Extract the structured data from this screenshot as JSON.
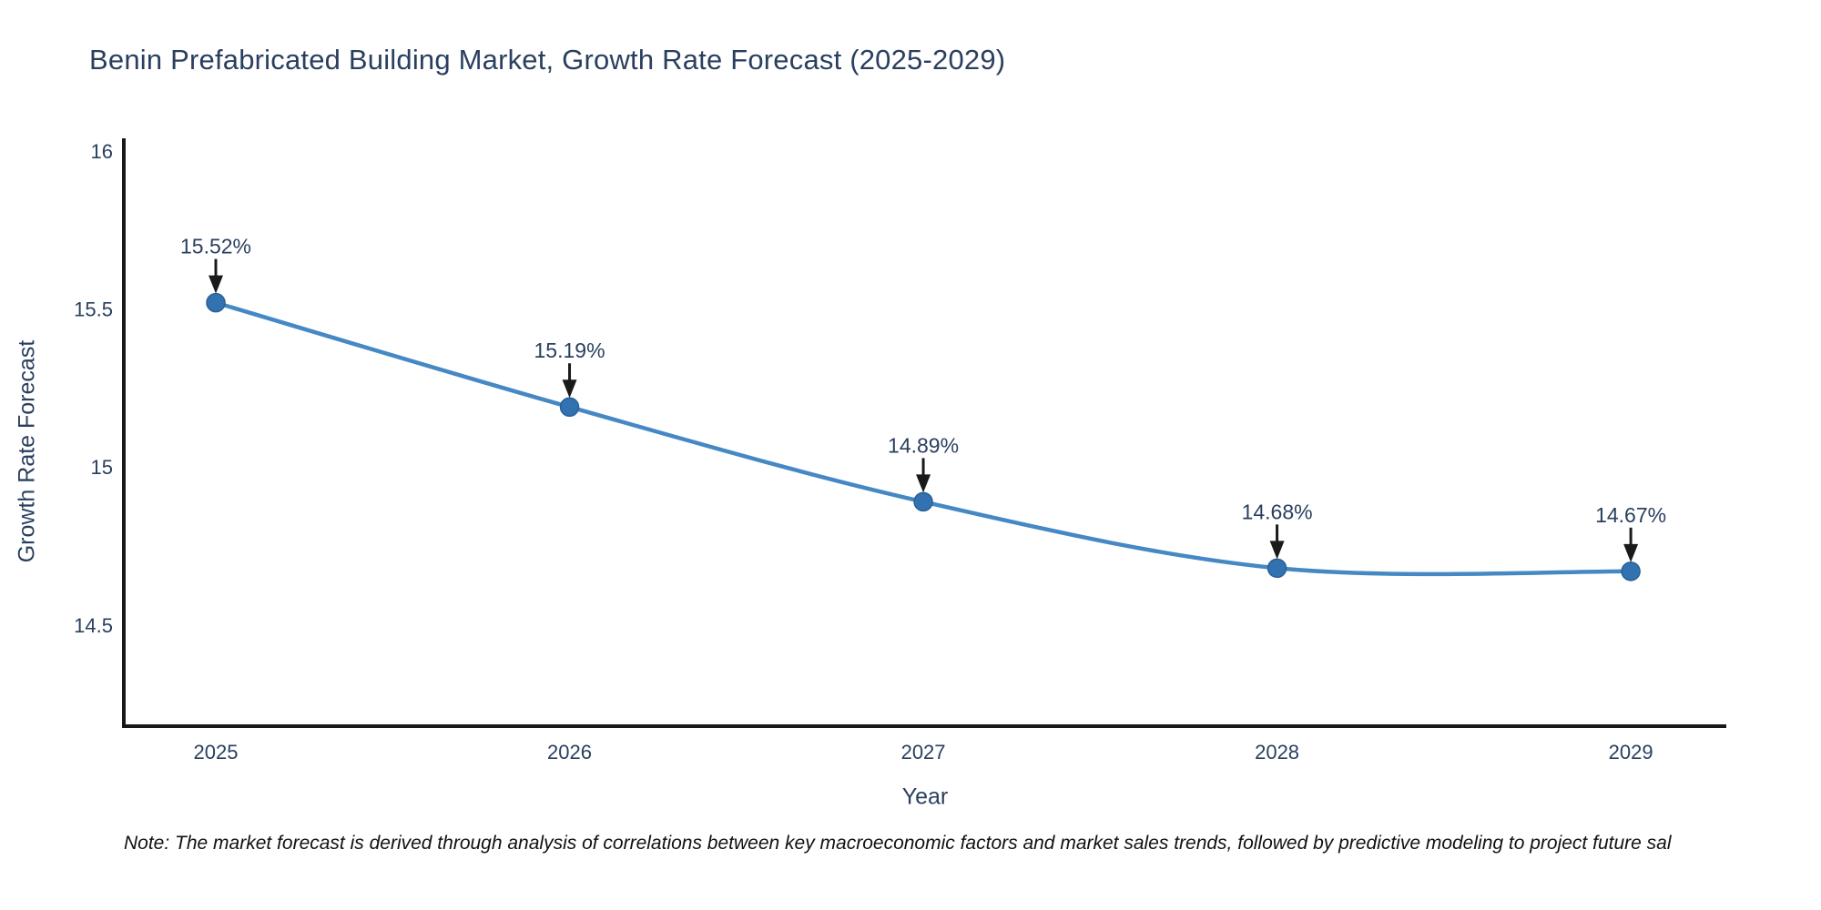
{
  "header": {
    "title": "Benin Prefabricated Building Market, Growth Rate Forecast (2025-2029)"
  },
  "note": {
    "text": "Note: The market forecast is derived through analysis of correlations between key macroeconomic factors and market sales trends, followed by predictive modeling to project future sal"
  },
  "colors": {
    "line": "#4588c4",
    "marker_fill": "#3272b1",
    "marker_stroke": "#2a5f96",
    "arrow": "#1a1a1a",
    "axis_line": "#181818",
    "text": "#2a3f5f"
  },
  "chart_data": {
    "type": "line",
    "title": "Benin Prefabricated Building Market, Growth Rate Forecast (2025-2029)",
    "xlabel": "Year",
    "ylabel": "Growth Rate Forecast",
    "x": [
      2025,
      2026,
      2027,
      2028,
      2029
    ],
    "series": [
      {
        "name": "Growth Rate Forecast",
        "values": [
          15.52,
          15.19,
          14.89,
          14.68,
          14.67
        ]
      }
    ],
    "point_labels": [
      "15.52%",
      "15.19%",
      "14.89%",
      "14.68%",
      "14.67%"
    ],
    "xtick_labels": [
      "2025",
      "2026",
      "2027",
      "2028",
      "2029"
    ],
    "ytick_labels": [
      "14.5",
      "15",
      "15.5",
      "16"
    ],
    "yticks": [
      14.5,
      15,
      15.5,
      16
    ],
    "ylim": [
      14.18,
      16.04
    ],
    "xlim": [
      2024.74,
      2029.27
    ],
    "line_shape": "spline",
    "grid": false,
    "legend_position": "none",
    "annotations_have_arrows": true
  }
}
